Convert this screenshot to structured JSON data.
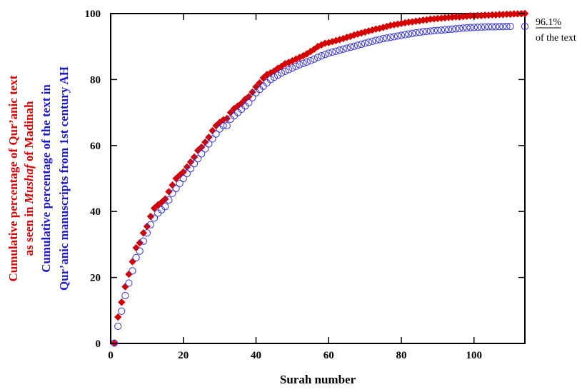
{
  "chart_data": {
    "type": "scatter",
    "xlabel": "Surah number",
    "ylabel_lines": [
      {
        "series": 0,
        "parts": [
          {
            "text": "Cumulative percentage of Qur’anic text",
            "italic": false
          }
        ]
      },
      {
        "series": 0,
        "parts": [
          {
            "text": "as seen in ",
            "italic": false
          },
          {
            "text": "Mushaf",
            "italic": true
          },
          {
            "text": " of Madinah",
            "italic": false
          }
        ]
      },
      {
        "series": 1,
        "parts": [
          {
            "text": "Cumulative percentage of the text in",
            "italic": false
          }
        ]
      },
      {
        "series": 1,
        "parts": [
          {
            "text": "Qur’anic manuscripts from 1st century AH",
            "italic": false
          }
        ]
      }
    ],
    "xlim": [
      0,
      114
    ],
    "ylim": [
      0,
      100
    ],
    "xticks": [
      0,
      20,
      40,
      60,
      80,
      100
    ],
    "yticks": [
      0,
      20,
      40,
      60,
      80,
      100
    ],
    "grid": false,
    "annotation": {
      "value_text": "96.1%",
      "text": "of the text",
      "x": 114,
      "y": 96.1
    },
    "colors": {
      "series0": "#d40000",
      "series1": "#3333cc"
    },
    "series": [
      {
        "marker": "diamond-filled",
        "x": [
          1,
          2,
          3,
          4,
          5,
          6,
          7,
          8,
          9,
          10,
          11,
          12,
          13,
          14,
          15,
          16,
          17,
          18,
          19,
          20,
          21,
          22,
          23,
          24,
          25,
          26,
          27,
          28,
          29,
          30,
          31,
          32,
          33,
          34,
          35,
          36,
          37,
          38,
          39,
          40,
          41,
          42,
          43,
          44,
          45,
          46,
          47,
          48,
          49,
          50,
          51,
          52,
          53,
          54,
          55,
          56,
          57,
          58,
          59,
          60,
          61,
          62,
          63,
          64,
          65,
          66,
          67,
          68,
          69,
          70,
          71,
          72,
          73,
          74,
          75,
          76,
          77,
          78,
          79,
          80,
          81,
          82,
          83,
          84,
          85,
          86,
          87,
          88,
          89,
          90,
          91,
          92,
          93,
          94,
          95,
          96,
          97,
          98,
          99,
          100,
          101,
          102,
          103,
          104,
          105,
          106,
          107,
          108,
          109,
          110,
          111,
          112,
          113,
          114
        ],
        "y": [
          0.1,
          8.0,
          12.5,
          17.2,
          21.0,
          24.8,
          29.0,
          30.5,
          33.5,
          35.5,
          38.5,
          41.0,
          42.0,
          42.8,
          43.8,
          46.0,
          48.0,
          50.0,
          51.0,
          52.0,
          53.5,
          55.0,
          56.5,
          58.5,
          59.5,
          61.0,
          62.5,
          64.5,
          66.0,
          67.0,
          67.8,
          68.2,
          70.0,
          71.2,
          72.0,
          72.8,
          74.0,
          74.8,
          76.2,
          77.8,
          79.0,
          80.5,
          81.5,
          82.0,
          82.6,
          83.4,
          84.0,
          84.8,
          85.2,
          85.7,
          86.2,
          86.7,
          87.2,
          87.8,
          88.5,
          89.2,
          90.0,
          90.5,
          91.0,
          91.2,
          91.5,
          91.8,
          92.1,
          92.4,
          92.8,
          93.1,
          93.5,
          93.8,
          94.1,
          94.4,
          94.7,
          95.0,
          95.3,
          95.5,
          95.8,
          96.1,
          96.4,
          96.6,
          96.8,
          97.0,
          97.2,
          97.4,
          97.5,
          97.7,
          97.8,
          98.0,
          98.1,
          98.3,
          98.4,
          98.5,
          98.6,
          98.7,
          98.8,
          98.9,
          99.0,
          99.0,
          99.1,
          99.2,
          99.3,
          99.3,
          99.4,
          99.4,
          99.5,
          99.5,
          99.6,
          99.6,
          99.7,
          99.7,
          99.8,
          99.8,
          99.9,
          99.9,
          99.95,
          100.0
        ]
      },
      {
        "marker": "circle-open",
        "x": [
          1,
          2,
          3,
          4,
          5,
          6,
          7,
          8,
          9,
          10,
          11,
          12,
          13,
          14,
          15,
          16,
          17,
          18,
          19,
          20,
          21,
          22,
          23,
          24,
          25,
          26,
          27,
          28,
          29,
          30,
          31,
          32,
          33,
          34,
          35,
          36,
          37,
          38,
          39,
          40,
          41,
          42,
          43,
          44,
          45,
          46,
          47,
          48,
          49,
          50,
          51,
          52,
          53,
          54,
          55,
          56,
          57,
          58,
          59,
          60,
          61,
          62,
          63,
          64,
          65,
          66,
          67,
          68,
          69,
          70,
          71,
          72,
          73,
          74,
          75,
          76,
          77,
          78,
          79,
          80,
          81,
          82,
          83,
          84,
          85,
          86,
          87,
          88,
          89,
          90,
          91,
          92,
          93,
          94,
          95,
          96,
          97,
          98,
          99,
          100,
          101,
          102,
          103,
          104,
          105,
          106,
          107,
          108,
          109,
          110,
          114
        ],
        "y": [
          0.1,
          5.2,
          9.8,
          14.5,
          18.3,
          22.0,
          26.0,
          28.0,
          31.0,
          33.5,
          36.0,
          38.0,
          39.5,
          40.5,
          41.5,
          43.5,
          45.5,
          47.0,
          48.5,
          50.0,
          51.5,
          53.0,
          54.5,
          56.0,
          57.5,
          59.0,
          60.5,
          62.0,
          63.5,
          65.0,
          66.0,
          66.0,
          68.0,
          69.0,
          70.0,
          71.0,
          72.0,
          73.0,
          74.5,
          76.0,
          77.0,
          78.0,
          79.0,
          80.0,
          80.7,
          81.3,
          82.0,
          82.5,
          83.0,
          83.5,
          84.0,
          84.5,
          84.9,
          85.3,
          85.7,
          86.2,
          86.7,
          87.2,
          87.6,
          88.0,
          88.3,
          88.6,
          88.9,
          89.2,
          89.5,
          89.8,
          90.1,
          90.4,
          90.7,
          91.0,
          91.3,
          91.6,
          91.9,
          92.1,
          92.4,
          92.6,
          92.8,
          93.0,
          93.2,
          93.4,
          93.6,
          93.8,
          94.0,
          94.2,
          94.3,
          94.5,
          94.6,
          94.7,
          94.8,
          94.9,
          95.0,
          95.1,
          95.2,
          95.3,
          95.4,
          95.5,
          95.6,
          95.7,
          95.75,
          95.8,
          95.85,
          95.9,
          95.95,
          96.0,
          96.0,
          96.0,
          96.05,
          96.05,
          96.1,
          96.1,
          96.1
        ]
      }
    ]
  }
}
